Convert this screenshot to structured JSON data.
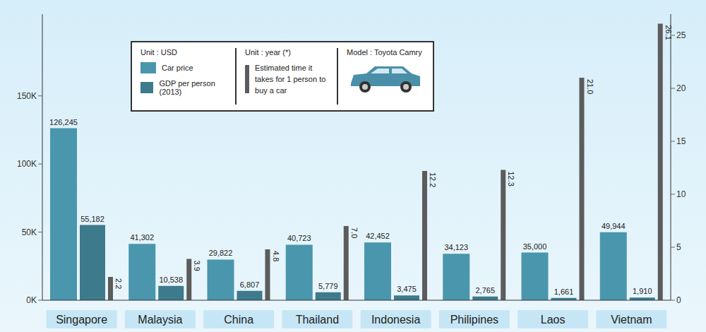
{
  "chart_data": {
    "type": "bar",
    "categories": [
      "Singapore",
      "Malaysia",
      "China",
      "Thailand",
      "Indonesia",
      "Philipines",
      "Laos",
      "Vietnam"
    ],
    "series": [
      {
        "name": "Car price",
        "color": "#4a96ad",
        "values": [
          126245,
          41302,
          29822,
          40723,
          42452,
          34123,
          35000,
          49944
        ],
        "value_labels": [
          "126,245",
          "41,302",
          "29,822",
          "40,723",
          "42,452",
          "34,123",
          "35,000",
          "49,944"
        ]
      },
      {
        "name": "GDP per person (2013)",
        "color": "#3d7a8c",
        "values": [
          55182,
          10538,
          6807,
          5779,
          3475,
          2765,
          1661,
          1910
        ],
        "value_labels": [
          "55,182",
          "10,538",
          "6,807",
          "5,779",
          "3,475",
          "2,765",
          "1,661",
          "1,910"
        ]
      },
      {
        "name": "Estimated time it takes for 1 person to buy a car",
        "color": "#5c5c5c",
        "axis": "y2",
        "values": [
          2.2,
          3.9,
          4.8,
          7.0,
          12.2,
          12.3,
          21.0,
          26.1
        ],
        "value_labels": [
          "2.2",
          "3.9",
          "4.8",
          "7.0",
          "12.2",
          "12.3",
          "21.0",
          "26.1"
        ]
      }
    ],
    "ylim": [
      0,
      210000
    ],
    "yticks": [
      {
        "value": 0,
        "label": "0K"
      },
      {
        "value": 50000,
        "label": "50K"
      },
      {
        "value": 100000,
        "label": "100K"
      },
      {
        "value": 150000,
        "label": "150K"
      }
    ],
    "y2lim": [
      0,
      27
    ],
    "y2ticks": [
      0,
      5,
      10,
      15,
      20,
      25
    ],
    "grid": false,
    "legend": "top",
    "data_labels": true,
    "annotations": [
      "Unit : USD",
      "Unit : year (*)",
      "Model : Toyota Camry"
    ]
  }
}
